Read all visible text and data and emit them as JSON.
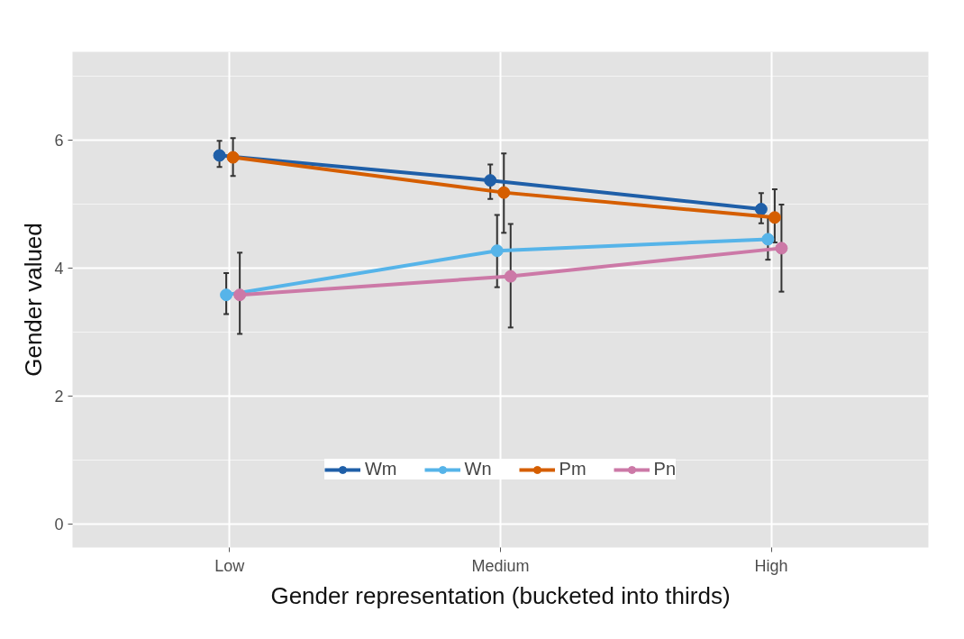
{
  "chart_data": {
    "type": "line",
    "xlabel": "Gender representation (bucketed into thirds)",
    "ylabel": "Gender valued",
    "categories": [
      "Low",
      "Medium",
      "High"
    ],
    "series": [
      {
        "name": "Wm",
        "color": "#1f5fa8",
        "values": [
          5.76,
          5.37,
          4.92
        ],
        "errors": [
          [
            5.58,
            5.99
          ],
          [
            5.08,
            5.62
          ],
          [
            4.7,
            5.17
          ]
        ]
      },
      {
        "name": "Wn",
        "color": "#56b4e9",
        "values": [
          3.58,
          4.27,
          4.45
        ],
        "errors": [
          [
            3.28,
            3.92
          ],
          [
            3.7,
            4.83
          ],
          [
            4.13,
            4.8
          ]
        ]
      },
      {
        "name": "Pm",
        "color": "#d55e00",
        "values": [
          5.73,
          5.18,
          4.79
        ],
        "errors": [
          [
            5.44,
            6.03
          ],
          [
            4.55,
            5.79
          ],
          [
            4.4,
            5.23
          ]
        ]
      },
      {
        "name": "Pn",
        "color": "#cc79a7",
        "values": [
          3.58,
          3.87,
          4.31
        ],
        "errors": [
          [
            2.97,
            4.24
          ],
          [
            3.07,
            4.69
          ],
          [
            3.63,
            4.99
          ]
        ]
      }
    ],
    "ylim": [
      -0.37,
      7.38
    ],
    "yticks": [
      0,
      2,
      4,
      6
    ],
    "grid": true,
    "legend": "bottom",
    "marker": "circle",
    "line_style": "solid"
  }
}
